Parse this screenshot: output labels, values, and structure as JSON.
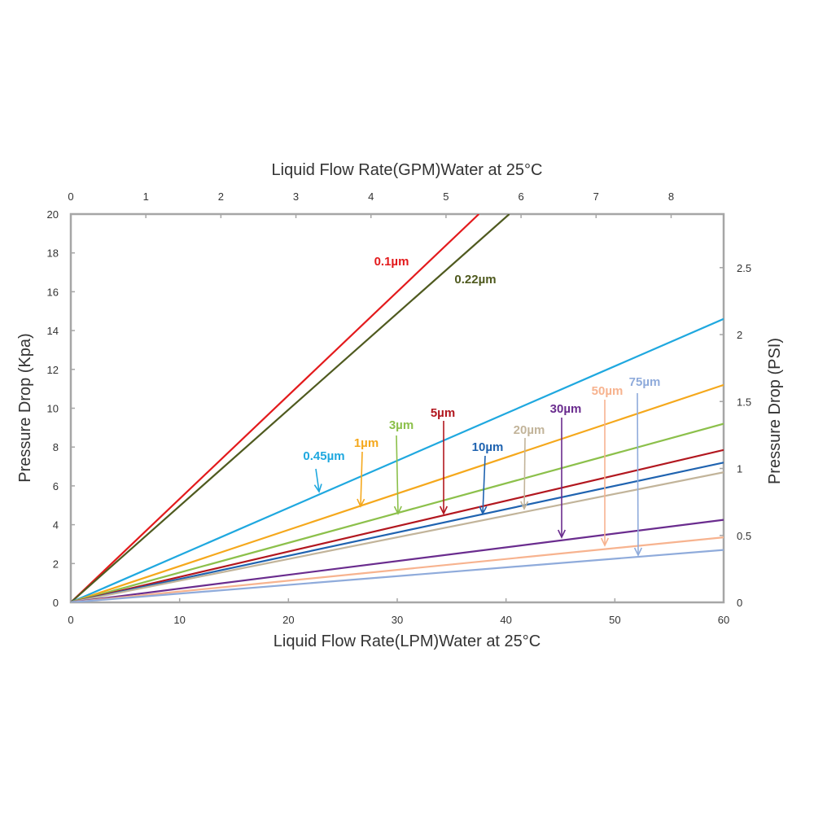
{
  "chart_data": {
    "type": "line",
    "title": "",
    "xlabel_top": "Liquid Flow Rate(GPM)Water at 25°C",
    "xlabel": "Liquid Flow Rate(LPM)Water at 25°C",
    "ylabel": "Pressure Drop (Kpa)",
    "ylabel_right": "Pressure Drop (PSI)",
    "xlim": [
      0,
      60
    ],
    "ylim": [
      0,
      20
    ],
    "x_ticks": [
      "0",
      "10",
      "20",
      "30",
      "40",
      "50",
      "60"
    ],
    "y_ticks": [
      "0",
      "2",
      "4",
      "6",
      "8",
      "10",
      "12",
      "14",
      "16",
      "18",
      "20"
    ],
    "top_axis": {
      "unit": "GPM",
      "xlim": [
        0,
        8.7
      ],
      "ticks": [
        "0",
        "1",
        "2",
        "3",
        "4",
        "5",
        "6",
        "7",
        "8"
      ]
    },
    "right_axis": {
      "unit": "PSI",
      "ylim": [
        0,
        2.9
      ],
      "ticks": [
        "0",
        "0.5",
        "1",
        "1.5",
        "2",
        "2.5"
      ]
    },
    "grid": false,
    "legend": "none",
    "frame_color": "#a6a6a6",
    "series": [
      {
        "name": "0.1µm",
        "color": "#e31a1c",
        "x": [
          0,
          37.5
        ],
        "y": [
          0,
          20
        ]
      },
      {
        "name": "0.22µm",
        "color": "#4f5a1f",
        "x": [
          0,
          40.3
        ],
        "y": [
          0,
          20
        ]
      },
      {
        "name": "0.45µm",
        "color": "#1fa8df",
        "x": [
          0,
          60
        ],
        "y": [
          0,
          14.6
        ]
      },
      {
        "name": "1µm",
        "color": "#f5a81c",
        "x": [
          0,
          60
        ],
        "y": [
          0,
          11.2
        ]
      },
      {
        "name": "3µm",
        "color": "#8cc04b",
        "x": [
          0,
          60
        ],
        "y": [
          0,
          9.2
        ]
      },
      {
        "name": "5µm",
        "color": "#b2171f",
        "x": [
          0,
          60
        ],
        "y": [
          0,
          7.85
        ]
      },
      {
        "name": "10µm",
        "color": "#1f63b0",
        "x": [
          0,
          60
        ],
        "y": [
          0,
          7.2
        ]
      },
      {
        "name": "20µm",
        "color": "#c2b49a",
        "x": [
          0,
          60
        ],
        "y": [
          0,
          6.7
        ]
      },
      {
        "name": "30µm",
        "color": "#6a2c8e",
        "x": [
          0,
          60
        ],
        "y": [
          0,
          4.25
        ]
      },
      {
        "name": "50µm",
        "color": "#f7b38f",
        "x": [
          0,
          60
        ],
        "y": [
          0,
          3.35
        ]
      },
      {
        "name": "75µm",
        "color": "#8fabdb",
        "x": [
          0,
          60
        ],
        "y": [
          0,
          2.7
        ]
      }
    ]
  }
}
